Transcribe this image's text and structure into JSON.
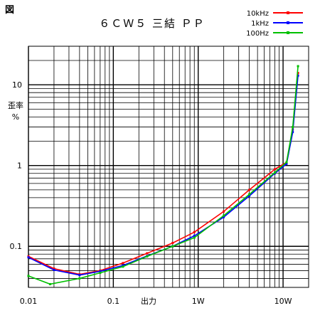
{
  "chart_data": {
    "type": "line",
    "corner_label": "図",
    "title": "６ＣＷ５ 三結 ＰＰ",
    "xlabel": "出力",
    "ylabel": "歪率",
    "yunit": "%",
    "x_scale": "log",
    "y_scale": "log",
    "xlim": [
      0.01,
      20
    ],
    "ylim": [
      0.031,
      30
    ],
    "grid": true,
    "legend_position": "top-right",
    "x_ticks": [
      {
        "value": 0.01,
        "label": "0.01"
      },
      {
        "value": 0.1,
        "label": "0.1"
      },
      {
        "value": 1,
        "label": "1W"
      },
      {
        "value": 10,
        "label": "10W"
      }
    ],
    "y_ticks": [
      {
        "value": 0.1,
        "label": "0.1"
      },
      {
        "value": 1,
        "label": "1"
      },
      {
        "value": 10,
        "label": "10"
      }
    ],
    "series": [
      {
        "name": "10kHz",
        "color": "#ff0000",
        "points": [
          [
            0.01,
            0.075
          ],
          [
            0.02,
            0.053
          ],
          [
            0.04,
            0.045
          ],
          [
            0.07,
            0.05
          ],
          [
            0.13,
            0.062
          ],
          [
            0.25,
            0.082
          ],
          [
            0.5,
            0.11
          ],
          [
            0.9,
            0.15
          ],
          [
            2,
            0.27
          ],
          [
            4,
            0.5
          ],
          [
            8,
            0.9
          ],
          [
            11,
            1.1
          ],
          [
            13,
            2.8
          ],
          [
            15,
            14
          ]
        ]
      },
      {
        "name": "1kHz",
        "color": "#0000ff",
        "points": [
          [
            0.01,
            0.073
          ],
          [
            0.02,
            0.051
          ],
          [
            0.04,
            0.044
          ],
          [
            0.07,
            0.049
          ],
          [
            0.13,
            0.058
          ],
          [
            0.25,
            0.076
          ],
          [
            0.5,
            0.1
          ],
          [
            0.9,
            0.135
          ],
          [
            2,
            0.23
          ],
          [
            4,
            0.42
          ],
          [
            8,
            0.8
          ],
          [
            11,
            1.05
          ],
          [
            13,
            2.6
          ],
          [
            15,
            13
          ]
        ]
      },
      {
        "name": "100Hz",
        "color": "#00c000",
        "points": [
          [
            0.01,
            0.043
          ],
          [
            0.018,
            0.034
          ],
          [
            0.04,
            0.04
          ],
          [
            0.07,
            0.047
          ],
          [
            0.13,
            0.056
          ],
          [
            0.25,
            0.075
          ],
          [
            0.5,
            0.1
          ],
          [
            0.9,
            0.128
          ],
          [
            2,
            0.24
          ],
          [
            4,
            0.44
          ],
          [
            8,
            0.82
          ],
          [
            11,
            1.1
          ],
          [
            13,
            3
          ],
          [
            15,
            17
          ]
        ]
      }
    ]
  }
}
